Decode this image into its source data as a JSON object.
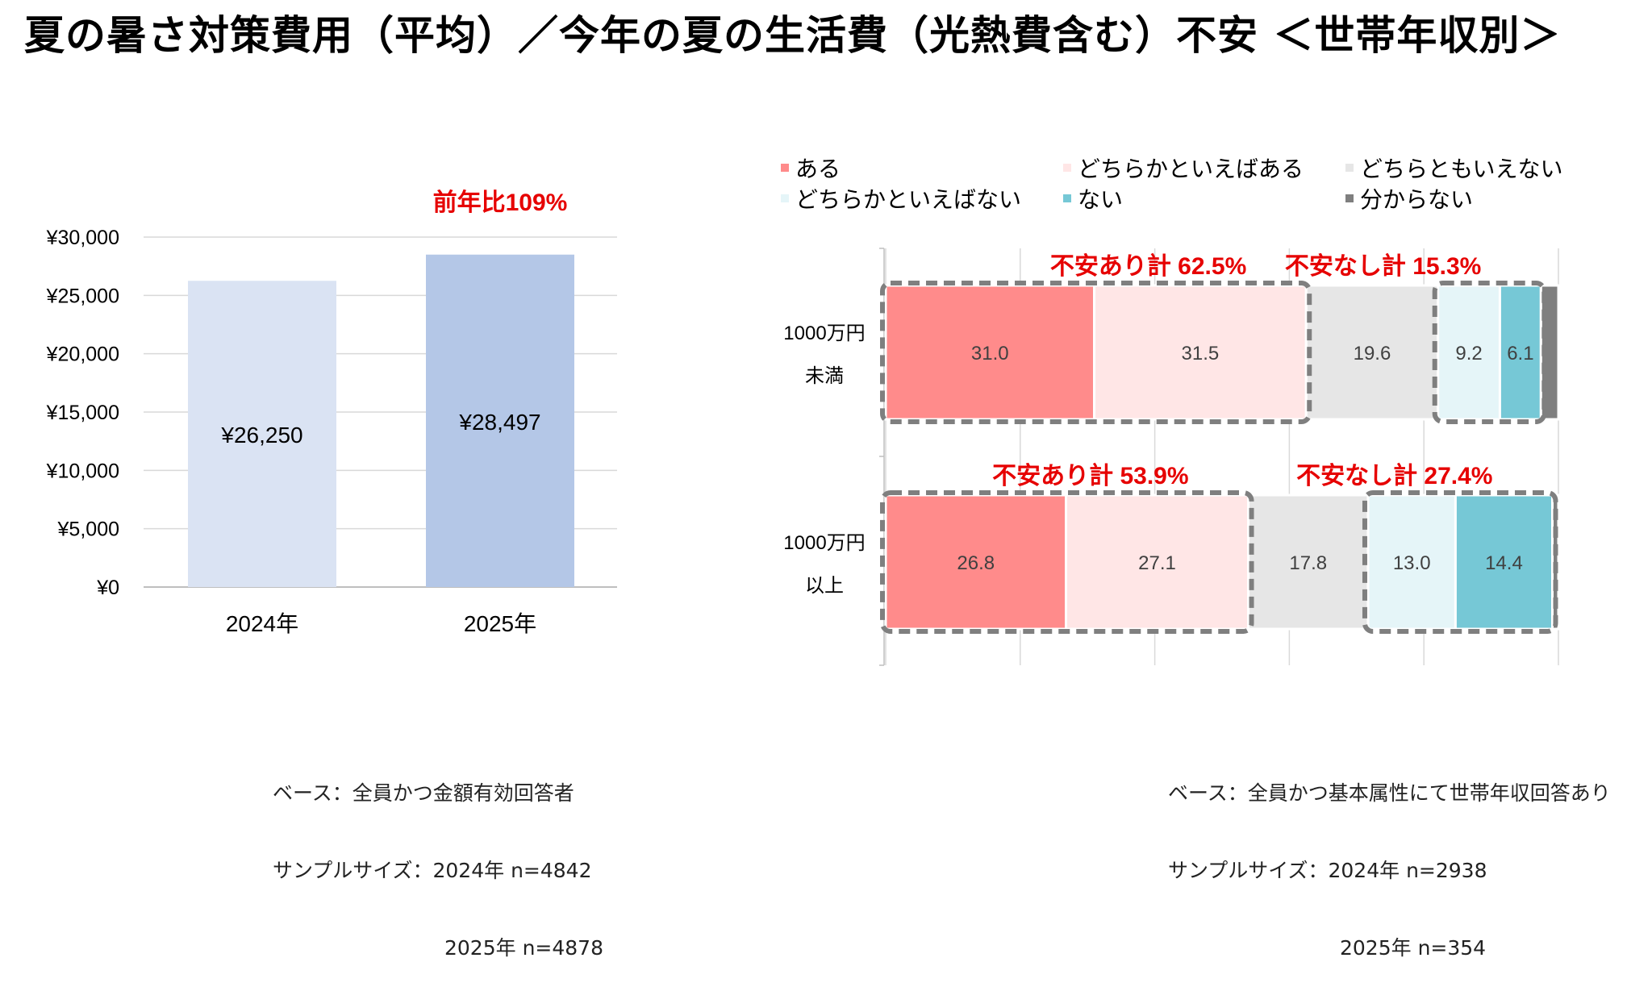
{
  "title": "夏の暑さ対策費用（平均）／今年の夏の生活費（光熱費含む）不安 ＜世帯年収別＞",
  "chart_data": [
    {
      "type": "bar",
      "categories": [
        "2024年",
        "2025年"
      ],
      "values": [
        26250,
        28497
      ],
      "value_labels": [
        "¥26,250",
        "¥28,497"
      ],
      "colors": [
        "#dae3f3",
        "#b4c7e7"
      ],
      "ylim": [
        0,
        30000
      ],
      "y_ticks": [
        0,
        5000,
        10000,
        15000,
        20000,
        25000,
        30000
      ],
      "y_tick_labels": [
        "¥0",
        "¥5,000",
        "¥10,000",
        "¥15,000",
        "¥20,000",
        "¥25,000",
        "¥30,000"
      ],
      "grid": true,
      "annotation": "前年比109%"
    },
    {
      "type": "bar",
      "orientation": "horizontal",
      "stacked": true,
      "categories": [
        [
          "1000万円",
          "未満"
        ],
        [
          "1000万円",
          "以上"
        ]
      ],
      "xlim": [
        0,
        100
      ],
      "legend_position": "top",
      "series": [
        {
          "name": "ある",
          "color": "#ff8b8b",
          "values": [
            31.0,
            26.8
          ],
          "labels": [
            "31.0",
            "26.8"
          ]
        },
        {
          "name": "どちらかといえばある",
          "color": "#ffe6e6",
          "values": [
            31.5,
            27.1
          ],
          "labels": [
            "31.5",
            "27.1"
          ]
        },
        {
          "name": "どちらともいえない",
          "color": "#e6e6e6",
          "values": [
            19.6,
            17.8
          ],
          "labels": [
            "19.6",
            "17.8"
          ]
        },
        {
          "name": "どちらかといえばない",
          "color": "#e5f5f8",
          "values": [
            9.2,
            13.0
          ],
          "labels": [
            "9.2",
            "13.0"
          ]
        },
        {
          "name": "ない",
          "color": "#76c8d6",
          "values": [
            6.1,
            14.4
          ],
          "labels": [
            "6.1",
            "14.4"
          ]
        },
        {
          "name": "分からない",
          "color": "#7f7f7f",
          "values": [
            2.6,
            0.9
          ],
          "labels": [
            "",
            ""
          ]
        }
      ],
      "group_annotations": [
        {
          "text": "不安あり計 62.5%",
          "row": 0,
          "series_range": [
            0,
            1
          ]
        },
        {
          "text": "不安なし計 15.3%",
          "row": 0,
          "series_range": [
            3,
            4
          ]
        },
        {
          "text": "不安あり計 53.9%",
          "row": 1,
          "series_range": [
            0,
            1
          ]
        },
        {
          "text": "不安なし計 27.4%",
          "row": 1,
          "series_range": [
            3,
            4
          ]
        }
      ],
      "annotation_color": "#e60000"
    }
  ],
  "notes": {
    "left": {
      "line1": "ベース：全員かつ金額有効回答者",
      "line2": "サンプルサイズ：2024年 n=4842",
      "line3": "2025年 n=4878"
    },
    "right": {
      "line1": "ベース：全員かつ基本属性にて世帯年収回答あり",
      "line2": "サンプルサイズ：2024年 n=2938",
      "line3": "2025年 n=354"
    }
  }
}
